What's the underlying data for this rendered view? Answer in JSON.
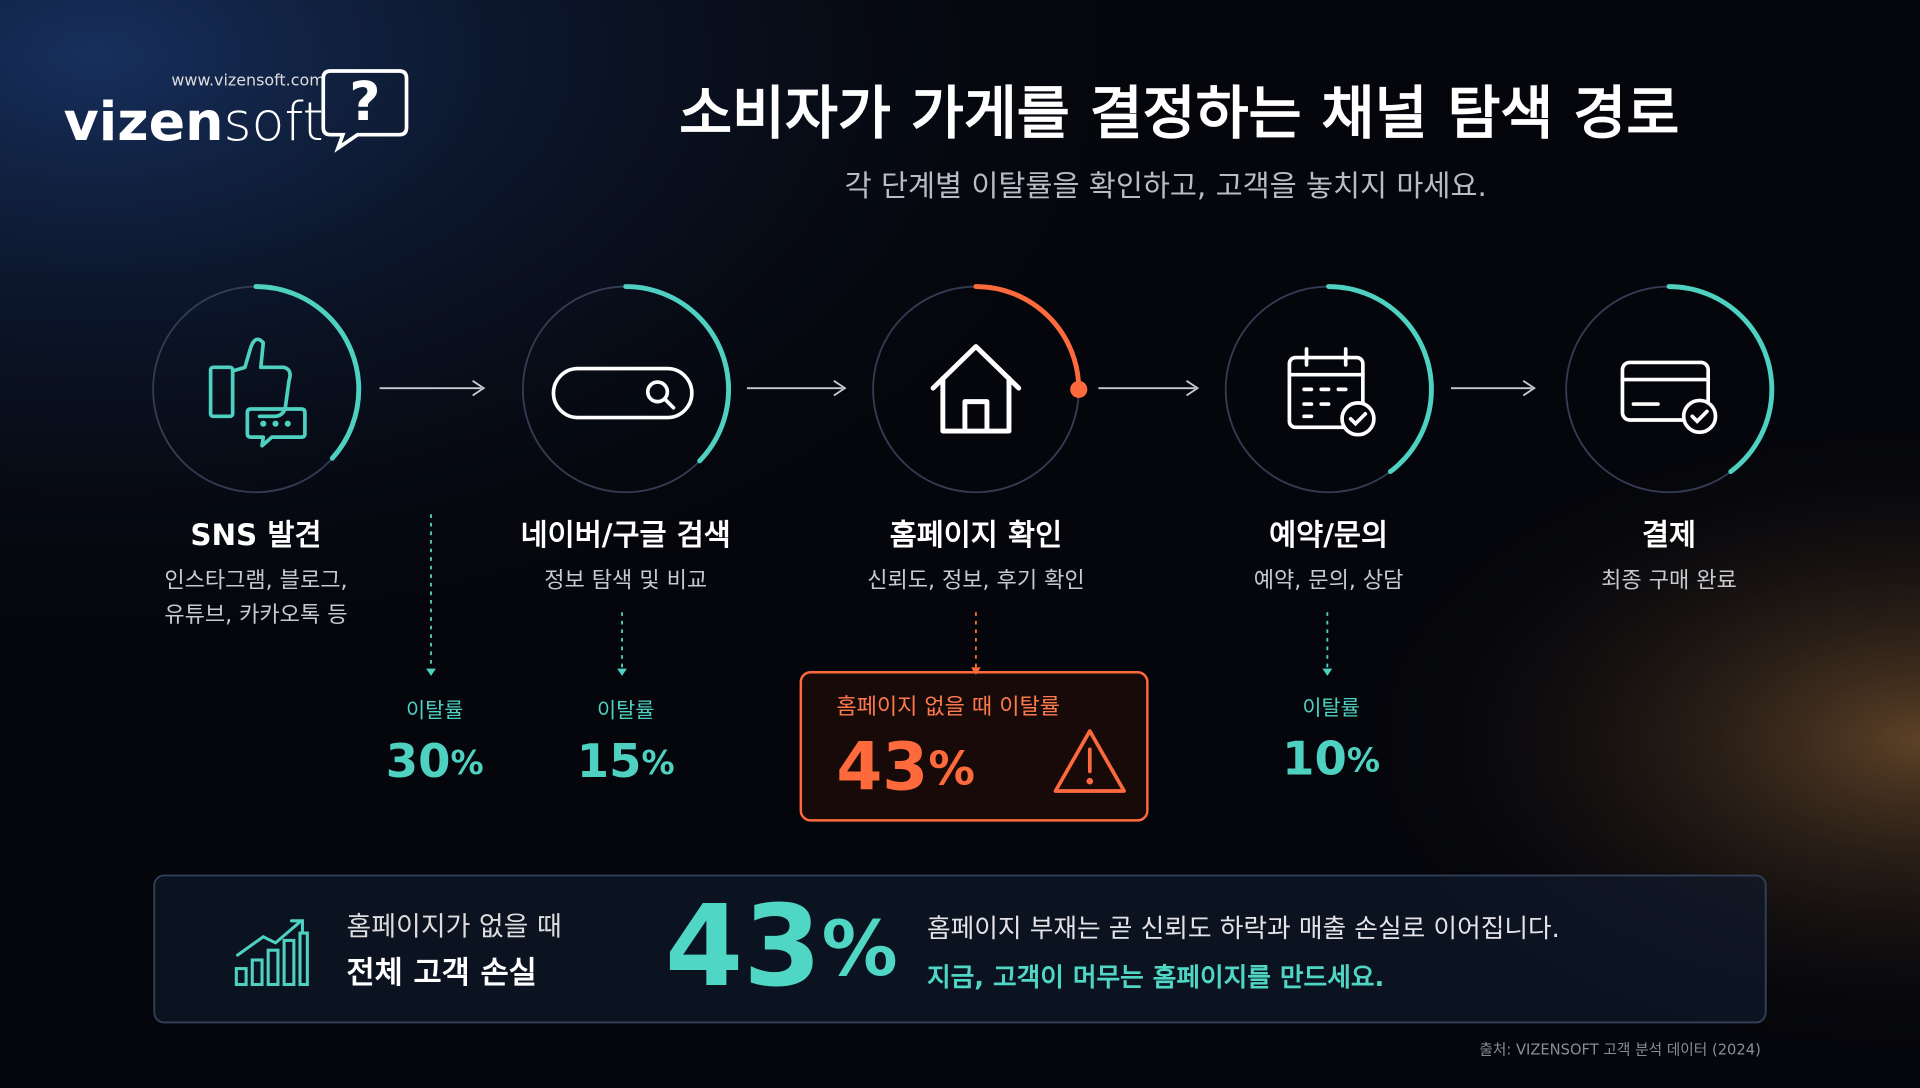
{
  "header": {
    "logo_url": "www.vizensoft.com",
    "logo_bold": "vizen",
    "logo_light": "soft",
    "logo_icon": "?",
    "title": "소비자가 가게를 결정하는 채널 탐색 경로",
    "subtitle": "각 단계별 이탈률을 확인하고, 고객을 놓치지 마세요."
  },
  "steps": [
    {
      "title": "SNS 발견",
      "description": [
        "인스타그램, 블로그,",
        "유튜브, 카카오톡 등"
      ]
    },
    {
      "title": "네이버/구글 검색",
      "description": [
        "정보 탐색 및 비교"
      ]
    },
    {
      "title": "홈페이지 확인",
      "description": [
        "신뢰도, 정보, 후기 확인"
      ]
    },
    {
      "title": "예약/문의",
      "description": [
        "예약, 문의, 상담"
      ]
    },
    {
      "title": "결제",
      "description": [
        "최종 구매 완료"
      ]
    }
  ],
  "drop_rates": [
    {
      "label": "이탈률",
      "value": "30",
      "unit": "%"
    },
    {
      "label": "이탈률",
      "value": "15",
      "unit": "%"
    },
    {
      "label": "이탈률",
      "value": "10",
      "unit": "%"
    }
  ],
  "highlight": {
    "label": "홈페이지 없을 때 이탈률",
    "value": "43",
    "unit": "%"
  },
  "summary": {
    "line1": "홈페이지가 없을 때",
    "line2": "전체 고객 손실",
    "value": "43",
    "unit": "%",
    "message": "홈페이지 부재는 곧 신뢰도 하락과 매출 손실로 이어집니다.",
    "call_to_action": "지금, 고객이 머무는 홈페이지를 만드세요."
  },
  "footer": {
    "source": "출처: VIZENSOFT 고객 분석 데이터 (2024)"
  }
}
